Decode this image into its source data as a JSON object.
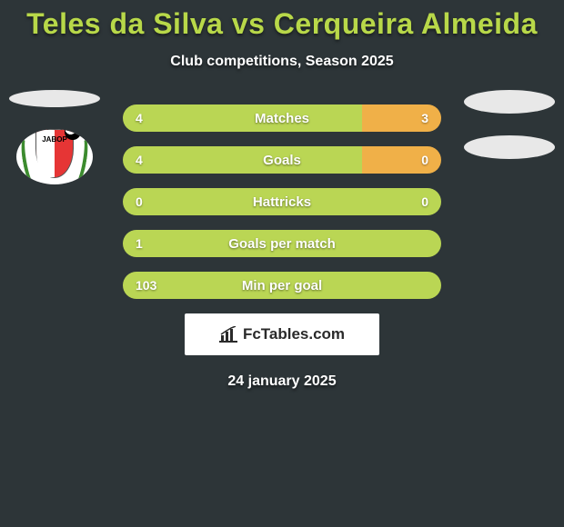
{
  "header": {
    "title": "Teles da Silva vs Cerqueira Almeida",
    "subtitle": "Club competitions, Season 2025"
  },
  "colors": {
    "left_bar": "#bad654",
    "right_bar": "#f0b048",
    "background": "#2d3538",
    "title_color": "#b8d849"
  },
  "club": {
    "name_line1": "JABOP",
    "name_line2": ""
  },
  "bars": [
    {
      "label": "Matches",
      "left_value": "4",
      "right_value": "3",
      "left_pct": 75,
      "right_pct": 25
    },
    {
      "label": "Goals",
      "left_value": "4",
      "right_value": "0",
      "left_pct": 75,
      "right_pct": 25
    },
    {
      "label": "Hattricks",
      "left_value": "0",
      "right_value": "0",
      "left_pct": 100,
      "right_pct": 0
    },
    {
      "label": "Goals per match",
      "left_value": "1",
      "right_value": "",
      "left_pct": 100,
      "right_pct": 0
    },
    {
      "label": "Min per goal",
      "left_value": "103",
      "right_value": "",
      "left_pct": 100,
      "right_pct": 0
    }
  ],
  "watermark": {
    "text": "FcTables.com"
  },
  "date": "24 january 2025"
}
